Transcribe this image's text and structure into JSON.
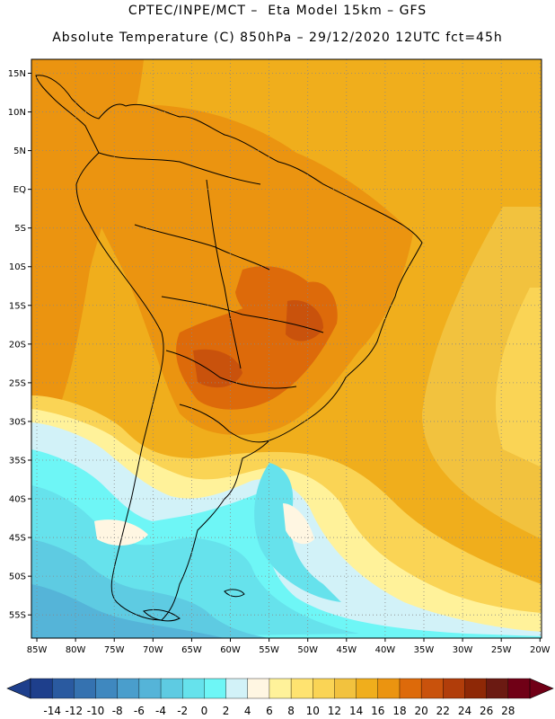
{
  "header": {
    "title_line1": "CPTEC/INPE/MCT –  Eta Model 15km – GFS",
    "title_line2": "Absolute Temperature (C) 850hPa – 29/12/2020 12UTC fct=45h"
  },
  "map": {
    "lat_labels": [
      "15N",
      "10N",
      "5N",
      "EQ",
      "5S",
      "10S",
      "15S",
      "20S",
      "25S",
      "30S",
      "35S",
      "40S",
      "45S",
      "50S",
      "55S"
    ],
    "lat_values": [
      15,
      10,
      5,
      0,
      -5,
      -10,
      -15,
      -20,
      -25,
      -30,
      -35,
      -40,
      -45,
      -50,
      -55
    ],
    "lon_labels": [
      "85W",
      "80W",
      "75W",
      "70W",
      "65W",
      "60W",
      "55W",
      "50W",
      "45W",
      "40W",
      "35W",
      "30W",
      "25W",
      "20W"
    ],
    "lon_values": [
      -85,
      -80,
      -75,
      -70,
      -65,
      -60,
      -55,
      -50,
      -45,
      -40,
      -35,
      -30,
      -25,
      -20
    ],
    "extent": {
      "lon_min": -85.7,
      "lon_max": -19.8,
      "lat_min": -58.0,
      "lat_max": 16.8
    },
    "grid": true
  },
  "colorbar": {
    "labels": [
      "-14",
      "-12",
      "-10",
      "-8",
      "-6",
      "-4",
      "-2",
      "0",
      "2",
      "4",
      "6",
      "8",
      "10",
      "12",
      "14",
      "16",
      "18",
      "20",
      "22",
      "24",
      "26",
      "28"
    ],
    "colors": [
      "#1e3f8c",
      "#2a5aa0",
      "#3572b0",
      "#3f88bf",
      "#4a9ecc",
      "#55b4d8",
      "#5ecbe2",
      "#66e2ec",
      "#6ef6f6",
      "#d2f2f8",
      "#fff6e2",
      "#fff29a",
      "#ffe370",
      "#fad455",
      "#f2c23e",
      "#f0ae1c",
      "#eb9410",
      "#dd6a0a",
      "#c9520c",
      "#b13d0a",
      "#8e2806",
      "#6b1a12",
      "#700016"
    ],
    "extend_left_color": "#1e3f8c",
    "extend_right_color": "#700016"
  }
}
